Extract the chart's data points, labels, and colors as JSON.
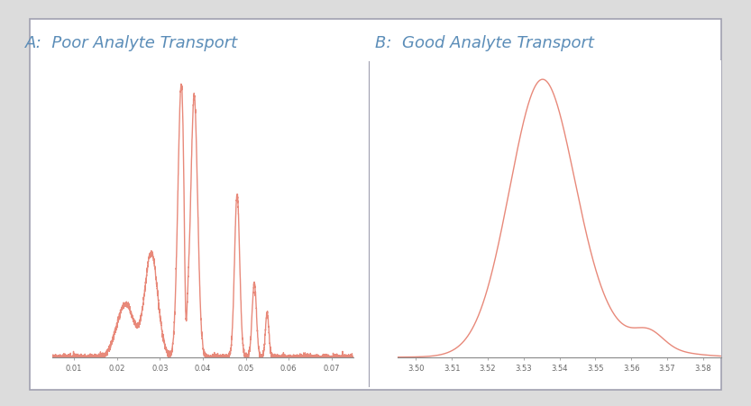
{
  "title_A": "A:  Poor Analyte Transport",
  "title_B": "B:  Good Analyte Transport",
  "title_color": "#5b8db8",
  "title_fontsize": 13,
  "line_color": "#e8897a",
  "background_color": "#ffffff",
  "outer_bg": "#dcdcdc",
  "xticks_A": [
    0.01,
    0.02,
    0.03,
    0.04,
    0.05,
    0.06,
    0.07
  ],
  "xticks_B": [
    3.5,
    3.51,
    3.52,
    3.53,
    3.54,
    3.55,
    3.56,
    3.57,
    3.58
  ],
  "xlim_A": [
    0.005,
    0.075
  ],
  "xlim_B": [
    3.495,
    3.585
  ],
  "ylim_A": [
    0,
    1.0
  ],
  "ylim_B": [
    0,
    1.0
  ]
}
